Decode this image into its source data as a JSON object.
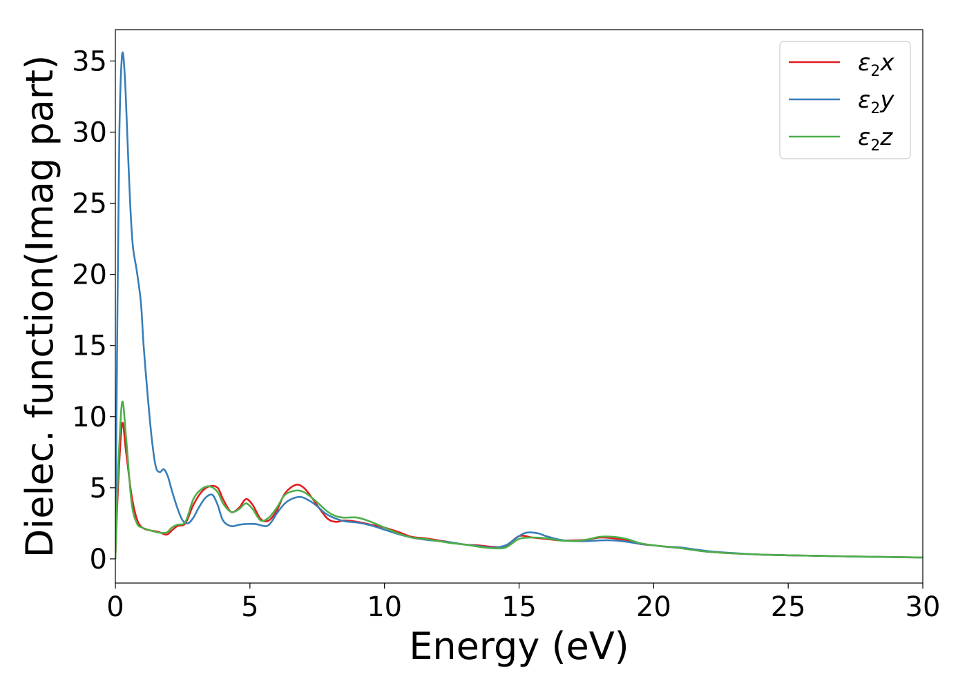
{
  "chart_data": {
    "type": "line",
    "xlabel": "Energy (eV)",
    "ylabel": "Dielec. function(Imag part)",
    "xlim": [
      0,
      30
    ],
    "ylim": [
      -1.7,
      37.2
    ],
    "xticks": [
      0,
      5,
      10,
      15,
      20,
      25,
      30
    ],
    "yticks": [
      0,
      5,
      10,
      15,
      20,
      25,
      30,
      35
    ],
    "grid": false,
    "legend_position": "top-right",
    "series": [
      {
        "name": "ε2x",
        "legend": {
          "base": "ε",
          "sub": "2",
          "var": "x"
        },
        "color": "#e41a1c",
        "x": [
          0,
          0.1,
          0.25,
          0.4,
          0.6,
          0.8,
          1.0,
          1.3,
          1.6,
          1.9,
          2.1,
          2.3,
          2.6,
          2.9,
          3.2,
          3.5,
          3.8,
          4.0,
          4.3,
          4.6,
          4.85,
          5.1,
          5.4,
          5.7,
          6.0,
          6.3,
          6.7,
          7.0,
          7.3,
          7.6,
          7.9,
          8.2,
          8.5,
          9.0,
          9.5,
          10.0,
          10.5,
          11.0,
          11.5,
          12.0,
          12.5,
          13.0,
          13.5,
          14.0,
          14.5,
          15.0,
          15.5,
          16.0,
          16.5,
          17.0,
          17.5,
          18.0,
          18.5,
          19.0,
          19.5,
          20.0,
          20.5,
          21.0,
          22.0,
          23.0,
          24.0,
          25.0,
          26.0,
          27.0,
          28.0,
          29.0,
          30.0
        ],
        "values": [
          0.0,
          5.0,
          9.5,
          7.5,
          4.5,
          2.8,
          2.2,
          2.0,
          1.9,
          1.7,
          2.0,
          2.3,
          2.5,
          3.8,
          4.7,
          5.1,
          5.0,
          4.2,
          3.3,
          3.6,
          4.2,
          3.8,
          2.8,
          2.7,
          3.4,
          4.6,
          5.2,
          5.0,
          4.3,
          3.5,
          2.8,
          2.6,
          2.7,
          2.6,
          2.4,
          2.2,
          1.9,
          1.55,
          1.45,
          1.3,
          1.15,
          1.0,
          0.95,
          0.85,
          0.9,
          1.6,
          1.5,
          1.4,
          1.3,
          1.3,
          1.35,
          1.5,
          1.45,
          1.3,
          1.05,
          0.95,
          0.85,
          0.75,
          0.5,
          0.38,
          0.3,
          0.25,
          0.22,
          0.18,
          0.15,
          0.12,
          0.1
        ]
      },
      {
        "name": "ε2y",
        "legend": {
          "base": "ε",
          "sub": "2",
          "var": "y"
        },
        "color": "#377eb8",
        "x": [
          0,
          0.08,
          0.15,
          0.25,
          0.35,
          0.45,
          0.55,
          0.65,
          0.8,
          0.95,
          1.05,
          1.2,
          1.35,
          1.5,
          1.65,
          1.8,
          1.95,
          2.1,
          2.3,
          2.5,
          2.7,
          2.9,
          3.1,
          3.35,
          3.6,
          3.8,
          4.0,
          4.3,
          4.6,
          4.85,
          5.2,
          5.6,
          5.8,
          6.0,
          6.3,
          6.6,
          6.9,
          7.2,
          7.5,
          7.8,
          8.1,
          8.5,
          9.0,
          9.5,
          10.0,
          10.5,
          11.0,
          11.5,
          12.0,
          12.5,
          13.0,
          13.5,
          14.0,
          14.5,
          15.0,
          15.3,
          15.7,
          16.0,
          16.5,
          17.0,
          17.5,
          18.0,
          18.5,
          19.0,
          19.5,
          20.0,
          20.5,
          21.0,
          22.0,
          23.0,
          24.0,
          25.0,
          26.0,
          27.0,
          28.0,
          29.0,
          30.0
        ],
        "values": [
          0.0,
          18.0,
          30.0,
          35.4,
          34.0,
          29.5,
          25.0,
          22.0,
          20.2,
          18.0,
          15.0,
          11.5,
          8.5,
          6.5,
          6.1,
          6.3,
          5.8,
          4.8,
          3.6,
          2.7,
          2.5,
          2.9,
          3.6,
          4.3,
          4.5,
          3.8,
          2.7,
          2.3,
          2.4,
          2.45,
          2.45,
          2.3,
          2.6,
          3.2,
          3.9,
          4.25,
          4.35,
          4.1,
          3.7,
          3.2,
          2.9,
          2.65,
          2.55,
          2.35,
          2.05,
          1.75,
          1.5,
          1.35,
          1.25,
          1.15,
          1.0,
          0.9,
          0.8,
          0.95,
          1.6,
          1.85,
          1.8,
          1.6,
          1.35,
          1.25,
          1.25,
          1.3,
          1.3,
          1.2,
          1.05,
          0.95,
          0.85,
          0.8,
          0.55,
          0.4,
          0.3,
          0.25,
          0.22,
          0.18,
          0.15,
          0.12,
          0.1
        ]
      },
      {
        "name": "ε2z",
        "legend": {
          "base": "ε",
          "sub": "2",
          "var": "z"
        },
        "color": "#4daf4a",
        "x": [
          0,
          0.1,
          0.25,
          0.4,
          0.6,
          0.8,
          1.0,
          1.3,
          1.6,
          1.9,
          2.1,
          2.3,
          2.6,
          2.9,
          3.2,
          3.5,
          3.8,
          4.0,
          4.3,
          4.6,
          4.85,
          5.1,
          5.4,
          5.7,
          6.0,
          6.3,
          6.7,
          7.0,
          7.3,
          7.6,
          7.9,
          8.2,
          8.5,
          9.0,
          9.5,
          10.0,
          10.5,
          11.0,
          11.5,
          12.0,
          12.5,
          13.0,
          13.5,
          14.0,
          14.5,
          15.0,
          15.5,
          16.0,
          16.5,
          17.0,
          17.5,
          18.0,
          18.5,
          19.0,
          19.5,
          20.0,
          20.5,
          21.0,
          22.0,
          23.0,
          24.0,
          25.0,
          26.0,
          27.0,
          28.0,
          29.0,
          30.0
        ],
        "values": [
          0.0,
          6.0,
          11.0,
          8.5,
          4.0,
          2.5,
          2.2,
          2.0,
          1.85,
          1.85,
          2.2,
          2.4,
          2.6,
          4.2,
          4.9,
          5.1,
          4.7,
          3.9,
          3.3,
          3.5,
          3.9,
          3.5,
          2.7,
          2.9,
          3.6,
          4.5,
          4.8,
          4.7,
          4.3,
          3.8,
          3.3,
          3.0,
          2.9,
          2.9,
          2.6,
          2.2,
          1.8,
          1.5,
          1.4,
          1.25,
          1.1,
          1.0,
          0.85,
          0.75,
          0.8,
          1.4,
          1.5,
          1.45,
          1.3,
          1.25,
          1.35,
          1.55,
          1.55,
          1.4,
          1.1,
          0.95,
          0.85,
          0.75,
          0.5,
          0.38,
          0.3,
          0.25,
          0.22,
          0.18,
          0.15,
          0.12,
          0.1
        ]
      }
    ]
  }
}
